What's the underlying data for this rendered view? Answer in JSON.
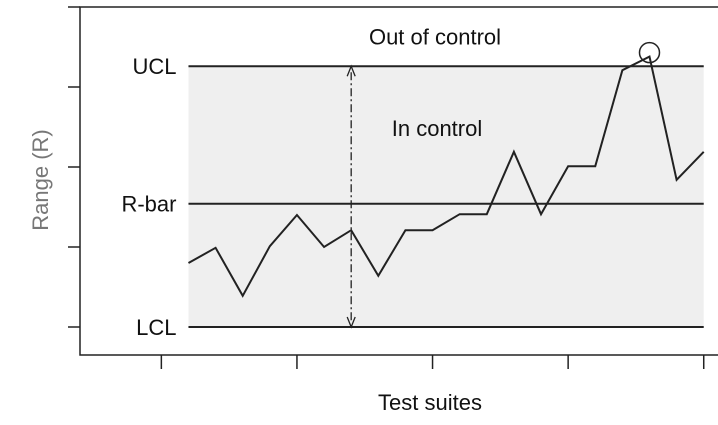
{
  "chart_data": {
    "type": "line",
    "x_label": "Test suites",
    "y_label": "Range (R)",
    "annotations": {
      "out": "Out of control",
      "in": "In control"
    },
    "limits": [
      {
        "label": "UCL",
        "value": 3.26
      },
      {
        "label": "R-bar",
        "value": 1.54
      },
      {
        "label": "LCL",
        "value": 0
      }
    ],
    "x": [
      1,
      2,
      3,
      4,
      5,
      6,
      7,
      8,
      9,
      10,
      11,
      12,
      13,
      14,
      15,
      16,
      17,
      18,
      19,
      20
    ],
    "series": [
      {
        "color": "#222222",
        "values": [
          0.8,
          0.99,
          0.39,
          1.01,
          1.4,
          1.0,
          1.21,
          0.64,
          1.21,
          1.21,
          1.41,
          1.41,
          2.19,
          1.41,
          2.01,
          2.01,
          3.21,
          3.38,
          1.84,
          2.19
        ]
      }
    ],
    "circled_point": 17,
    "xlim": [
      -3,
      20.6
    ],
    "ylim": [
      -0.35,
      4.0
    ],
    "xticks": [
      0,
      5,
      10,
      15,
      20
    ],
    "yticks": [
      0,
      1,
      2,
      3,
      4
    ]
  }
}
